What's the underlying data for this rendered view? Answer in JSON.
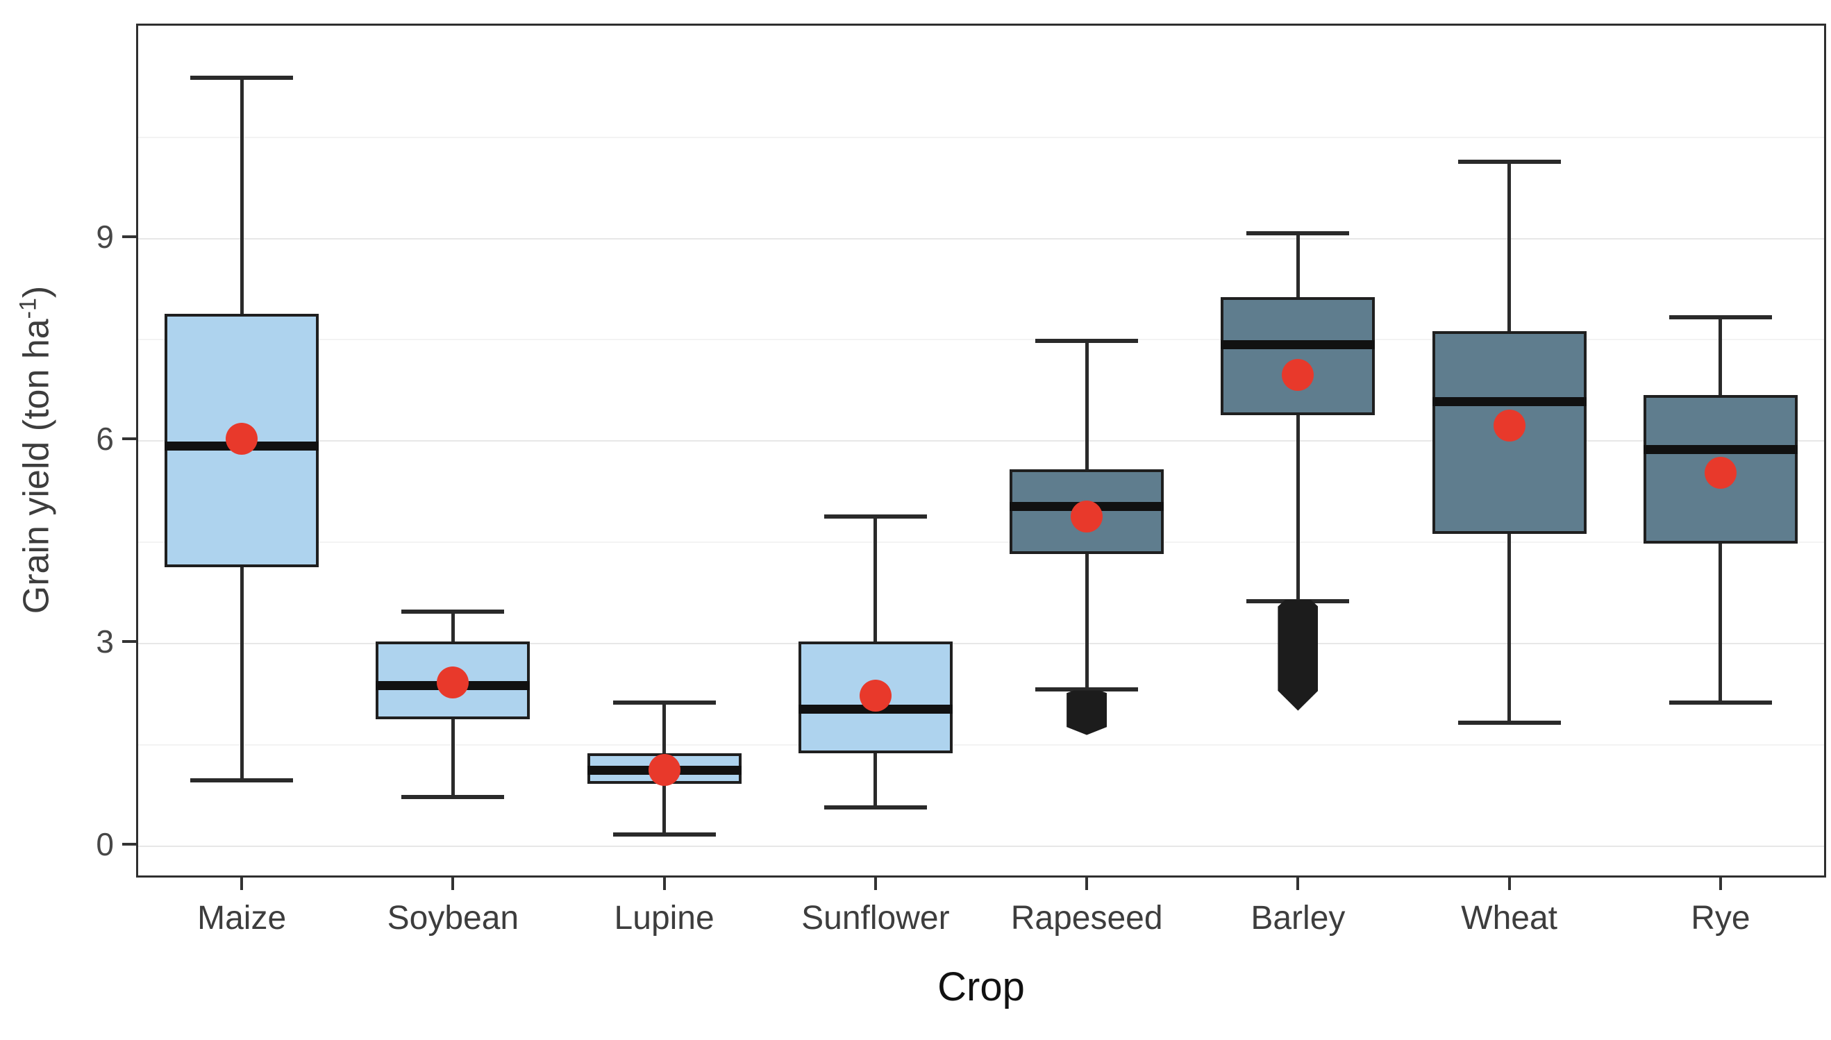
{
  "chart_data": {
    "type": "boxplot",
    "title": "",
    "xlabel": "Crop",
    "ylabel": {
      "prefix": "Grain yield (ton ha",
      "sup": "-1",
      "suffix": ")"
    },
    "y_axis": {
      "ticks": [
        "0",
        "3",
        "6",
        "9"
      ],
      "tick_values": [
        0,
        3,
        6,
        9
      ],
      "minor_values": [
        1.5,
        4.5,
        7.5,
        10.5
      ],
      "range": [
        -0.49,
        12.15
      ],
      "grid": "on"
    },
    "categories": [
      "Maize",
      "Soybean",
      "Lupine",
      "Sunflower",
      "Rapeseed",
      "Barley",
      "Wheat",
      "Rye"
    ],
    "series": [
      {
        "name": "Maize",
        "fill": "light",
        "whisker_low": 0.95,
        "q1": 4.1,
        "median": 5.9,
        "mean": 6.0,
        "q3": 7.85,
        "whisker_high": 11.35,
        "outliers": null
      },
      {
        "name": "Soybean",
        "fill": "light",
        "whisker_low": 0.7,
        "q1": 1.85,
        "median": 2.35,
        "mean": 2.4,
        "q3": 3.0,
        "whisker_high": 3.45,
        "outliers": null
      },
      {
        "name": "Lupine",
        "fill": "light",
        "whisker_low": 0.15,
        "q1": 0.9,
        "median": 1.1,
        "mean": 1.1,
        "q3": 1.35,
        "whisker_high": 2.1,
        "outliers": null
      },
      {
        "name": "Sunflower",
        "fill": "light",
        "whisker_low": 0.55,
        "q1": 1.35,
        "median": 2.0,
        "mean": 2.2,
        "q3": 3.0,
        "whisker_high": 4.85,
        "outliers": null
      },
      {
        "name": "Rapeseed",
        "fill": "dark",
        "whisker_low": 2.3,
        "q1": 4.3,
        "median": 5.0,
        "mean": 4.85,
        "q3": 5.55,
        "whisker_high": 7.45,
        "outliers": {
          "range": [
            1.62,
            2.28
          ]
        }
      },
      {
        "name": "Barley",
        "fill": "dark",
        "whisker_low": 3.6,
        "q1": 6.35,
        "median": 7.4,
        "mean": 6.95,
        "q3": 8.1,
        "whisker_high": 9.05,
        "outliers": {
          "range": [
            1.98,
            3.62
          ]
        }
      },
      {
        "name": "Wheat",
        "fill": "dark",
        "whisker_low": 1.8,
        "q1": 4.6,
        "median": 6.55,
        "mean": 6.2,
        "q3": 7.6,
        "whisker_high": 10.1,
        "outliers": null
      },
      {
        "name": "Rye",
        "fill": "dark",
        "whisker_low": 2.1,
        "q1": 4.45,
        "median": 5.85,
        "mean": 5.5,
        "q3": 6.65,
        "whisker_high": 7.8,
        "outliers": null
      }
    ],
    "legend": "none"
  },
  "colors": {
    "light_box": "#aed3ee",
    "dark_box": "#5f7d8e",
    "box_border": "#1f1f1f",
    "median": "#111111",
    "whisker": "#2a2a2a",
    "mean_point": "#e8392b",
    "outlier": "#1c1c1c",
    "grid_major": "#e7e7e7",
    "grid_minor": "#f3f3f3",
    "panel_border": "#2f2f2f",
    "background": "#ffffff"
  }
}
